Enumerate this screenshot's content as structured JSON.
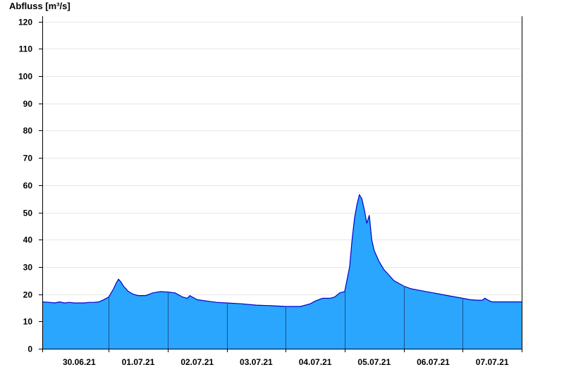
{
  "chart_data": {
    "type": "area",
    "title": "",
    "xlabel": "",
    "ylabel": "Abfluss [m³/s]",
    "ylim": [
      0,
      122
    ],
    "yticks": [
      0,
      10,
      20,
      30,
      40,
      50,
      60,
      70,
      80,
      90,
      100,
      110,
      120
    ],
    "xlim": [
      "2021-06-29T21:00",
      "2021-07-08T00:00"
    ],
    "xtick_labels": [
      "30.06.21",
      "01.07.21",
      "02.07.21",
      "03.07.21",
      "04.07.21",
      "05.07.21",
      "06.07.21",
      "07.07.21"
    ],
    "xtick_positions": [
      "2021-06-30T12:00",
      "2021-07-01T12:00",
      "2021-07-02T12:00",
      "2021-07-03T12:00",
      "2021-07-04T12:00",
      "2021-07-05T12:00",
      "2021-07-06T12:00",
      "2021-07-07T12:00"
    ],
    "day_boundaries": [
      "2021-07-01T00:00",
      "2021-07-02T00:00",
      "2021-07-03T00:00",
      "2021-07-04T00:00",
      "2021-07-05T00:00",
      "2021-07-06T00:00",
      "2021-07-07T00:00"
    ],
    "grid": true,
    "legend": "none",
    "fill_color": "#2aa6ff",
    "line_color": "#0000cc",
    "series": [
      {
        "x": [
          "2021-06-29T21:00",
          "2021-06-30T00:00",
          "2021-06-30T02:00",
          "2021-06-30T04:00",
          "2021-06-30T06:00",
          "2021-06-30T08:00",
          "2021-06-30T10:00",
          "2021-06-30T12:00",
          "2021-06-30T14:00",
          "2021-06-30T16:00",
          "2021-06-30T18:00",
          "2021-06-30T20:00",
          "2021-06-30T22:00",
          "2021-07-01T00:00",
          "2021-07-01T02:00",
          "2021-07-01T03:00",
          "2021-07-01T04:00",
          "2021-07-01T05:00",
          "2021-07-01T06:00",
          "2021-07-01T08:00",
          "2021-07-01T10:00",
          "2021-07-01T12:00",
          "2021-07-01T15:00",
          "2021-07-01T18:00",
          "2021-07-01T21:00",
          "2021-07-02T00:00",
          "2021-07-02T03:00",
          "2021-07-02T06:00",
          "2021-07-02T08:00",
          "2021-07-02T09:00",
          "2021-07-02T12:00",
          "2021-07-02T16:00",
          "2021-07-02T20:00",
          "2021-07-03T00:00",
          "2021-07-03T06:00",
          "2021-07-03T12:00",
          "2021-07-03T18:00",
          "2021-07-04T00:00",
          "2021-07-04T06:00",
          "2021-07-04T10:00",
          "2021-07-04T12:00",
          "2021-07-04T15:00",
          "2021-07-04T18:00",
          "2021-07-04T20:00",
          "2021-07-04T22:00",
          "2021-07-05T00:00",
          "2021-07-05T02:00",
          "2021-07-05T03:00",
          "2021-07-05T04:00",
          "2021-07-05T05:00",
          "2021-07-05T06:00",
          "2021-07-05T07:00",
          "2021-07-05T08:00",
          "2021-07-05T09:00",
          "2021-07-05T10:00",
          "2021-07-05T11:00",
          "2021-07-05T12:00",
          "2021-07-05T14:00",
          "2021-07-05T16:00",
          "2021-07-05T18:00",
          "2021-07-05T20:00",
          "2021-07-05T22:00",
          "2021-07-06T00:00",
          "2021-07-06T03:00",
          "2021-07-06T06:00",
          "2021-07-06T09:00",
          "2021-07-06T12:00",
          "2021-07-06T15:00",
          "2021-07-06T18:00",
          "2021-07-06T21:00",
          "2021-07-07T00:00",
          "2021-07-07T03:00",
          "2021-07-07T06:00",
          "2021-07-07T08:00",
          "2021-07-07T09:00",
          "2021-07-07T11:00",
          "2021-07-07T12:00",
          "2021-07-07T14:00",
          "2021-07-07T18:00",
          "2021-07-08T00:00"
        ],
        "values": [
          17.2,
          17.0,
          16.8,
          17.2,
          16.8,
          17.0,
          16.8,
          16.8,
          16.8,
          17.0,
          17.0,
          17.2,
          18.0,
          19.0,
          22.0,
          24.0,
          25.5,
          24.5,
          23.0,
          21.0,
          20.0,
          19.5,
          19.5,
          20.5,
          21.0,
          20.8,
          20.5,
          19.0,
          18.5,
          19.5,
          18.0,
          17.5,
          17.0,
          16.8,
          16.5,
          16.0,
          15.8,
          15.5,
          15.5,
          16.5,
          17.5,
          18.5,
          18.5,
          19.0,
          20.5,
          21.0,
          30.0,
          40.0,
          48.0,
          53.0,
          56.5,
          55.0,
          51.0,
          46.0,
          49.0,
          40.0,
          36.0,
          32.0,
          29.0,
          27.0,
          25.0,
          24.0,
          23.0,
          22.0,
          21.5,
          21.0,
          20.5,
          20.0,
          19.5,
          19.0,
          18.5,
          18.0,
          17.8,
          17.8,
          18.5,
          17.5,
          17.2,
          17.2,
          17.2,
          17.2
        ]
      }
    ]
  }
}
